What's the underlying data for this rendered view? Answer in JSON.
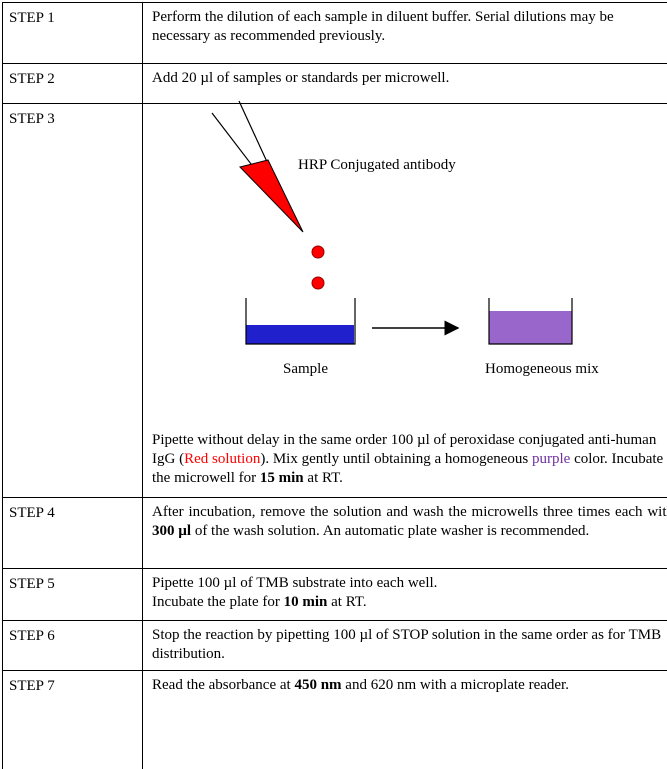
{
  "rows": [
    {
      "step": "STEP 1",
      "paragraphs": [
        [
          {
            "text": "Perform the dilution of each sample in diluent buffer. Serial dilutions may be necessary as recommended previously.",
            "style": "normal"
          }
        ]
      ]
    },
    {
      "step": "STEP 2",
      "paragraphs": [
        [
          {
            "text": "Add 20 µl of samples or standards per microwell.",
            "style": "normal"
          }
        ]
      ]
    },
    {
      "step": "STEP 3",
      "figure": {
        "top_label": "HRP Conjugated antibody",
        "sample_label": "Sample",
        "mix_label": "Homogeneous mix"
      },
      "paragraphs": [
        [
          {
            "text": "Pipette without delay in the same order 100 µl of peroxidase conjugated anti-human IgG (",
            "style": "normal"
          },
          {
            "text": "Red solution",
            "style": "red"
          },
          {
            "text": "). Mix gently until obtaining a homogeneous ",
            "style": "normal"
          },
          {
            "text": "purple",
            "style": "purple"
          },
          {
            "text": " color. Incubate the microwell for ",
            "style": "normal"
          },
          {
            "text": "15 min",
            "style": "bold"
          },
          {
            "text": " at RT.",
            "style": "normal"
          }
        ]
      ]
    },
    {
      "step": "STEP 4",
      "justify": true,
      "paragraphs": [
        [
          {
            "text": "After incubation, remove the solution and wash the microwells three times each with ",
            "style": "normal"
          },
          {
            "text": "300 µl",
            "style": "bold"
          },
          {
            "text": " of the wash solution. An automatic plate washer is recommended.",
            "style": "normal"
          }
        ]
      ]
    },
    {
      "step": "STEP 5",
      "paragraphs": [
        [
          {
            "text": "Pipette 100 µl of TMB substrate into each well.",
            "style": "normal"
          }
        ],
        [
          {
            "text": "Incubate the plate for ",
            "style": "normal"
          },
          {
            "text": "10 min",
            "style": "bold"
          },
          {
            "text": " at RT.",
            "style": "normal"
          }
        ]
      ]
    },
    {
      "step": "STEP 6",
      "paragraphs": [
        [
          {
            "text": "Stop the reaction by pipetting 100 µl of STOP solution in the same order as for TMB distribution.",
            "style": "normal"
          }
        ]
      ]
    },
    {
      "step": "STEP 7",
      "paragraphs": [
        [
          {
            "text": "Read the absorbance at ",
            "style": "normal"
          },
          {
            "text": "450 nm",
            "style": "bold"
          },
          {
            "text": " and 620 nm with a microplate reader.",
            "style": "normal"
          }
        ]
      ]
    }
  ]
}
